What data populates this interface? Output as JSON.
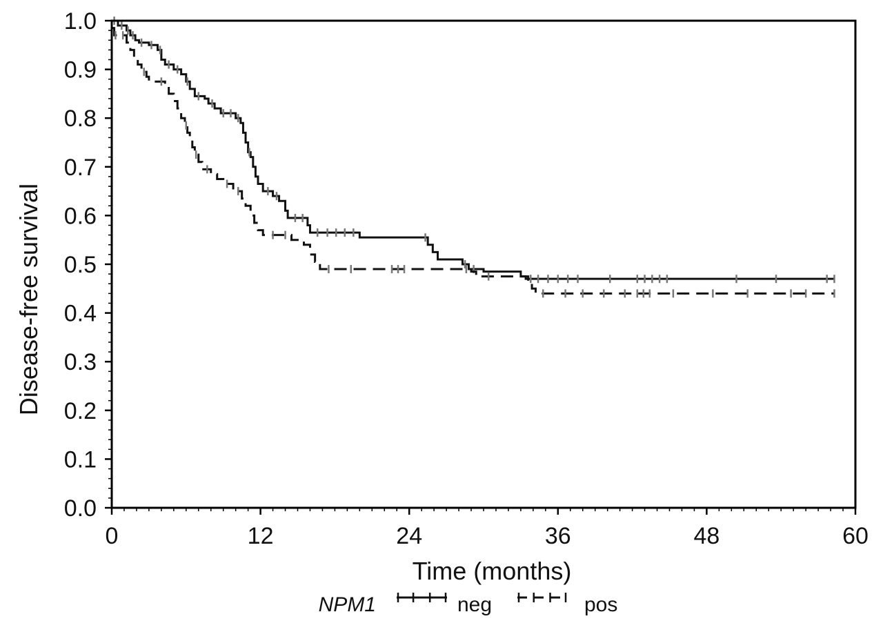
{
  "chart_data": {
    "type": "line",
    "title": "",
    "xlabel": "Time (months)",
    "ylabel": "Disease-free survival",
    "xlim": [
      0,
      60
    ],
    "ylim": [
      0,
      1
    ],
    "xticks": [
      "0",
      "12",
      "24",
      "36",
      "48",
      "60"
    ],
    "yticks": [
      "0.0",
      "0.1",
      "0.2",
      "0.3",
      "0.4",
      "0.5",
      "0.6",
      "0.7",
      "0.8",
      "0.9",
      "1.0"
    ],
    "grid": false,
    "legend": {
      "title": "NPM1",
      "position": "bottom",
      "entries": [
        "neg",
        "pos"
      ]
    },
    "series": [
      {
        "name": "neg",
        "style": "solid",
        "steps": [
          [
            0,
            1.0
          ],
          [
            0.5,
            0.99
          ],
          [
            1.2,
            0.98
          ],
          [
            1.5,
            0.97
          ],
          [
            1.9,
            0.96
          ],
          [
            2.2,
            0.955
          ],
          [
            3.0,
            0.95
          ],
          [
            3.7,
            0.94
          ],
          [
            4.0,
            0.92
          ],
          [
            4.3,
            0.91
          ],
          [
            5.0,
            0.9
          ],
          [
            5.6,
            0.89
          ],
          [
            6.0,
            0.875
          ],
          [
            6.3,
            0.86
          ],
          [
            6.7,
            0.845
          ],
          [
            7.5,
            0.84
          ],
          [
            7.8,
            0.83
          ],
          [
            8.3,
            0.82
          ],
          [
            8.8,
            0.81
          ],
          [
            10.0,
            0.8
          ],
          [
            10.4,
            0.79
          ],
          [
            10.6,
            0.77
          ],
          [
            10.8,
            0.75
          ],
          [
            11.0,
            0.73
          ],
          [
            11.2,
            0.72
          ],
          [
            11.4,
            0.7
          ],
          [
            11.6,
            0.68
          ],
          [
            11.8,
            0.665
          ],
          [
            12.2,
            0.65
          ],
          [
            13.0,
            0.64
          ],
          [
            13.5,
            0.63
          ],
          [
            14.0,
            0.61
          ],
          [
            14.2,
            0.595
          ],
          [
            15.8,
            0.58
          ],
          [
            16.0,
            0.565
          ],
          [
            20.0,
            0.555
          ],
          [
            25.5,
            0.54
          ],
          [
            25.9,
            0.525
          ],
          [
            26.3,
            0.51
          ],
          [
            28.3,
            0.5
          ],
          [
            28.8,
            0.49
          ],
          [
            30.0,
            0.485
          ],
          [
            33.0,
            0.475
          ],
          [
            33.4,
            0.47
          ]
        ],
        "end": 58.3,
        "censors": [
          0.2,
          0.8,
          1.3,
          1.7,
          2.4,
          3.2,
          3.9,
          4.6,
          5.3,
          6.1,
          7.0,
          8.1,
          9.0,
          9.6,
          10.2,
          11.1,
          12.6,
          13.3,
          14.8,
          15.4,
          16.6,
          17.4,
          18.1,
          18.8,
          19.5,
          25.3,
          28.5,
          29.2,
          33.8,
          34.4,
          35.2,
          36.0,
          36.8,
          37.6,
          40.2,
          42.4,
          43.0,
          43.6,
          44.2,
          44.8,
          50.4,
          53.6,
          57.7,
          58.3
        ]
      },
      {
        "name": "pos",
        "style": "dashed",
        "steps": [
          [
            0,
            0.985
          ],
          [
            0.2,
            0.97
          ],
          [
            1.2,
            0.955
          ],
          [
            1.5,
            0.94
          ],
          [
            1.8,
            0.925
          ],
          [
            2.1,
            0.91
          ],
          [
            2.4,
            0.895
          ],
          [
            2.8,
            0.885
          ],
          [
            3.0,
            0.875
          ],
          [
            4.3,
            0.865
          ],
          [
            4.6,
            0.85
          ],
          [
            5.0,
            0.835
          ],
          [
            5.3,
            0.82
          ],
          [
            5.6,
            0.8
          ],
          [
            5.9,
            0.785
          ],
          [
            6.1,
            0.77
          ],
          [
            6.3,
            0.755
          ],
          [
            6.5,
            0.74
          ],
          [
            6.7,
            0.725
          ],
          [
            7.0,
            0.71
          ],
          [
            7.3,
            0.695
          ],
          [
            8.0,
            0.685
          ],
          [
            8.5,
            0.675
          ],
          [
            9.0,
            0.665
          ],
          [
            9.8,
            0.65
          ],
          [
            10.5,
            0.635
          ],
          [
            10.8,
            0.62
          ],
          [
            11.2,
            0.6
          ],
          [
            11.5,
            0.585
          ],
          [
            11.8,
            0.57
          ],
          [
            12.2,
            0.56
          ],
          [
            14.5,
            0.55
          ],
          [
            15.5,
            0.54
          ],
          [
            16.0,
            0.52
          ],
          [
            16.4,
            0.505
          ],
          [
            16.8,
            0.49
          ],
          [
            29.0,
            0.485
          ],
          [
            29.4,
            0.475
          ],
          [
            33.6,
            0.465
          ],
          [
            33.9,
            0.45
          ],
          [
            34.2,
            0.44
          ]
        ],
        "end": 58.3,
        "censors": [
          0.3,
          0.9,
          2.6,
          4.0,
          6.0,
          6.8,
          7.7,
          9.3,
          10.2,
          13.0,
          14.0,
          17.5,
          19.3,
          22.6,
          23.1,
          23.6,
          28.6,
          30.4,
          34.8,
          36.6,
          38.0,
          39.7,
          41.4,
          42.4,
          42.9,
          43.4,
          45.3,
          48.5,
          51.3,
          54.8,
          56.0,
          58.3
        ]
      }
    ]
  }
}
